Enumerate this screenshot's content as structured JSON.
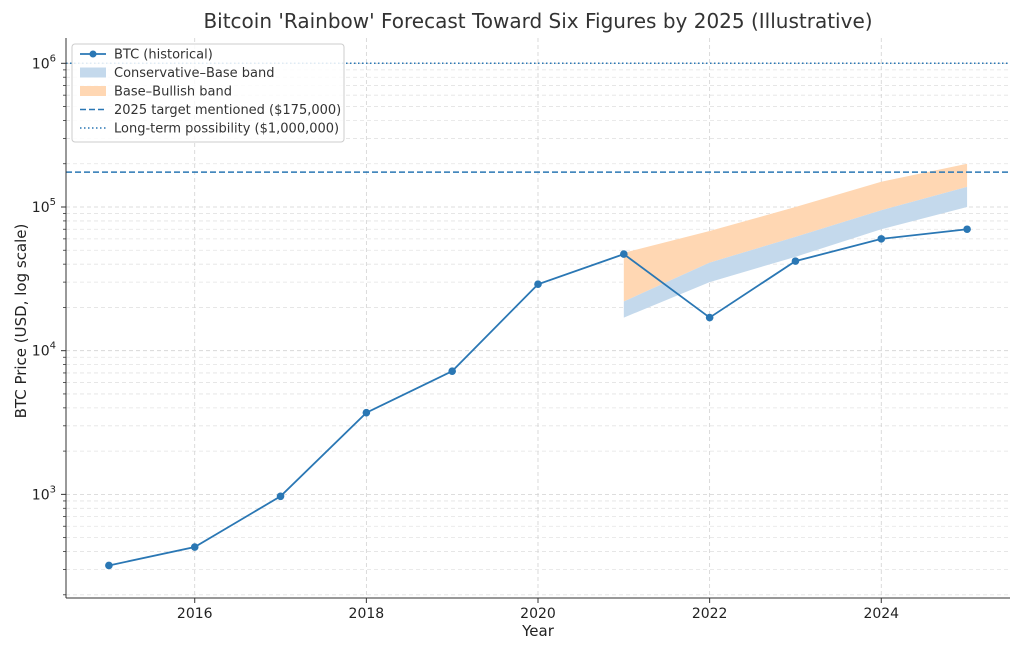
{
  "chart_data": {
    "type": "line",
    "title": "Bitcoin 'Rainbow' Forecast Toward Six Figures by 2025 (Illustrative)",
    "xlabel": "Year",
    "ylabel": "BTC Price (USD, log scale)",
    "yscale": "log",
    "xlim": [
      2014.5,
      2025.5
    ],
    "ylim": [
      190,
      1500000
    ],
    "grid": true,
    "legend_position": "top-left",
    "x_ticks": [
      2016,
      2018,
      2020,
      2022,
      2024
    ],
    "y_ticks": [
      {
        "value": 1000,
        "base": "10",
        "exp": "3"
      },
      {
        "value": 10000,
        "base": "10",
        "exp": "4"
      },
      {
        "value": 100000,
        "base": "10",
        "exp": "5"
      },
      {
        "value": 1000000,
        "base": "10",
        "exp": "6"
      }
    ],
    "series": [
      {
        "name": "BTC (historical)",
        "color": "#2a77b4",
        "x": [
          2015,
          2016,
          2017,
          2018,
          2019,
          2020,
          2021,
          2022,
          2023,
          2024,
          2025
        ],
        "y": [
          320,
          430,
          970,
          3700,
          7200,
          29000,
          47000,
          17000,
          42000,
          60000,
          70000
        ]
      }
    ],
    "bands": [
      {
        "name": "Base–Bullish band",
        "color": "#ffd7b3",
        "x": [
          2021,
          2022,
          2023,
          2024,
          2025
        ],
        "lower": [
          22000,
          41000,
          62000,
          95000,
          138000
        ],
        "upper": [
          48000,
          68000,
          100000,
          150000,
          200000
        ]
      },
      {
        "name": "Conservative–Base band",
        "color": "#c4d9ec",
        "x": [
          2021,
          2022,
          2023,
          2024,
          2025
        ],
        "lower": [
          17000,
          30000,
          45000,
          70000,
          100000
        ],
        "upper": [
          22000,
          41000,
          62000,
          95000,
          138000
        ]
      }
    ],
    "reference_lines": [
      {
        "name": "2025 target mentioned ($175,000)",
        "value": 175000,
        "color": "#2a77b4",
        "style": "dashed"
      },
      {
        "name": "Long-term possibility ($1,000,000)",
        "value": 1000000,
        "color": "#2a77b4",
        "style": "dotted"
      }
    ]
  }
}
